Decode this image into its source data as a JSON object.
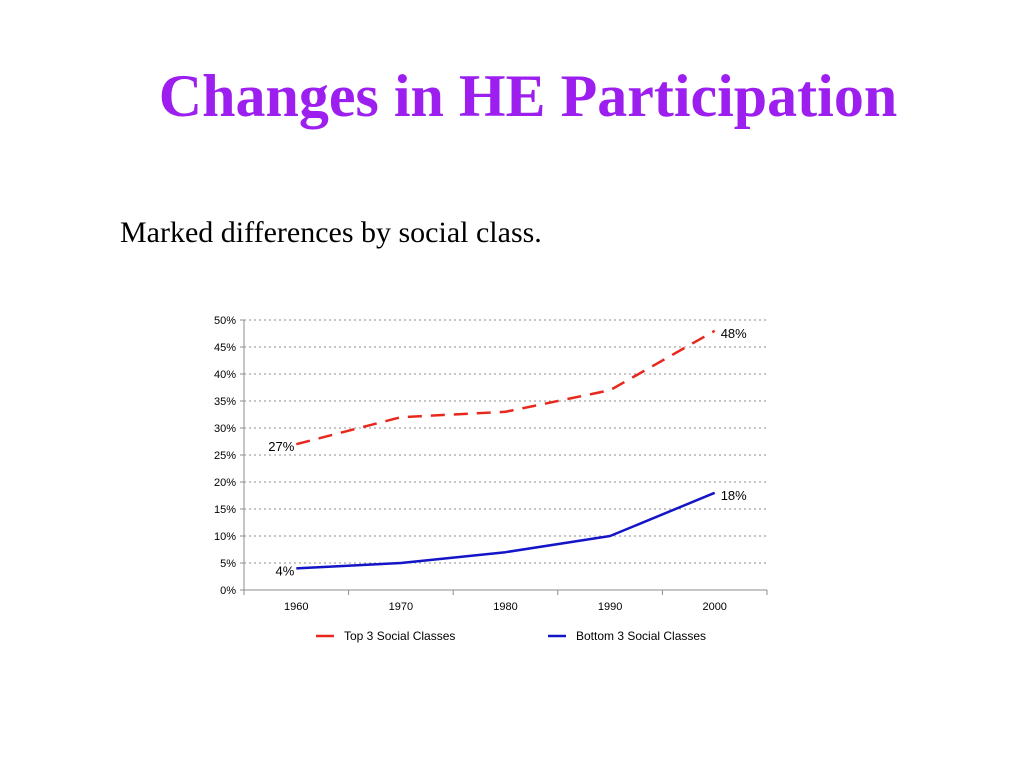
{
  "slide": {
    "title": "Changes in HE Participation",
    "subtitle": "Marked differences by social class."
  },
  "chart_data": {
    "type": "line",
    "categories": [
      "1960",
      "1970",
      "1980",
      "1990",
      "2000"
    ],
    "ylim": [
      0,
      0.5
    ],
    "yticks": [
      0,
      0.05,
      0.1,
      0.15,
      0.2,
      0.25,
      0.3,
      0.35,
      0.4,
      0.45,
      0.5
    ],
    "ytick_labels": [
      "0%",
      "5%",
      "10%",
      "15%",
      "20%",
      "25%",
      "30%",
      "35%",
      "40%",
      "45%",
      "50%"
    ],
    "grid": "horizontal dashed",
    "legend_position": "bottom",
    "series": [
      {
        "name": "Top 3 Social Classes",
        "values": [
          0.27,
          0.32,
          0.33,
          0.37,
          0.48
        ],
        "color": "#e8271d",
        "dashed": true,
        "data_labels": [
          {
            "index": 0,
            "text": "27%",
            "side": "left"
          },
          {
            "index": 4,
            "text": "48%",
            "side": "right"
          }
        ]
      },
      {
        "name": "Bottom 3 Social Classes",
        "values": [
          0.04,
          0.05,
          0.07,
          0.1,
          0.18
        ],
        "color": "#1515c8",
        "dashed": false,
        "data_labels": [
          {
            "index": 0,
            "text": "4%",
            "side": "left"
          },
          {
            "index": 4,
            "text": "18%",
            "side": "right"
          }
        ]
      }
    ]
  }
}
